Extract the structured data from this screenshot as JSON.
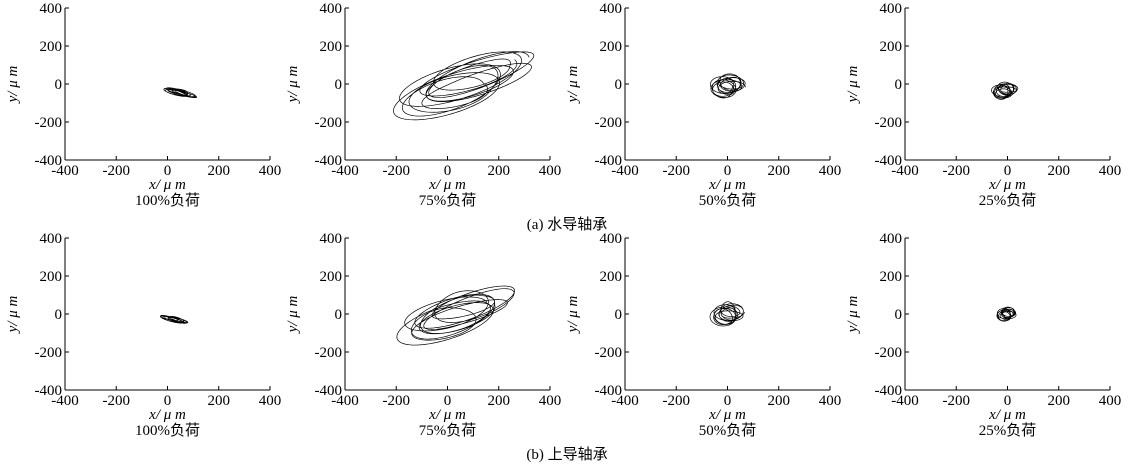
{
  "chart_data": [
    {
      "type": "line",
      "row": 0,
      "col": 0,
      "caption": "100%负荷",
      "xlabel": "x/ μ m",
      "ylabel": "y/ μ m",
      "xlim": [
        -400,
        400
      ],
      "ylim": [
        -400,
        400
      ],
      "xticks": [
        "-400",
        "-200",
        "0",
        "200",
        "400"
      ],
      "yticks": [
        "400",
        "200",
        "0",
        "-200",
        "-400"
      ],
      "orbit": {
        "cx": 45,
        "cy": -45,
        "rx": 55,
        "ry": 14,
        "angle_deg": -20,
        "loops": 8
      }
    },
    {
      "type": "line",
      "row": 0,
      "col": 1,
      "caption": "75%负荷",
      "xlabel": "x/ μ m",
      "ylabel": "y/ μ m",
      "xlim": [
        -400,
        400
      ],
      "ylim": [
        -400,
        400
      ],
      "xticks": [
        "-400",
        "-200",
        "0",
        "200",
        "400"
      ],
      "yticks": [
        "400",
        "200",
        "0",
        "-200",
        "-400"
      ],
      "orbit": {
        "cx": 60,
        "cy": 0,
        "rx": 240,
        "ry": 95,
        "angle_deg": 25,
        "loops": 10
      }
    },
    {
      "type": "line",
      "row": 0,
      "col": 2,
      "caption": "50%负荷",
      "xlabel": "x/ μ m",
      "ylabel": "y/ μ m",
      "xlim": [
        -400,
        400
      ],
      "ylim": [
        -400,
        400
      ],
      "xticks": [
        "-400",
        "-200",
        "0",
        "200",
        "400"
      ],
      "yticks": [
        "400",
        "200",
        "0",
        "-200",
        "-400"
      ],
      "orbit": {
        "cx": 0,
        "cy": -10,
        "rx": 55,
        "ry": 50,
        "angle_deg": 0,
        "loops": 10
      }
    },
    {
      "type": "line",
      "row": 0,
      "col": 3,
      "caption": "25%负荷",
      "xlabel": "x/ μ m",
      "ylabel": "y/ μ m",
      "xlim": [
        -400,
        400
      ],
      "ylim": [
        -400,
        400
      ],
      "xticks": [
        "-400",
        "-200",
        "0",
        "200",
        "400"
      ],
      "yticks": [
        "400",
        "200",
        "0",
        "-200",
        "-400"
      ],
      "orbit": {
        "cx": -10,
        "cy": -35,
        "rx": 40,
        "ry": 35,
        "angle_deg": 0,
        "loops": 10
      }
    },
    {
      "type": "line",
      "row": 1,
      "col": 0,
      "caption": "100%负荷",
      "xlabel": "x/ μ m",
      "ylabel": "y/ μ m",
      "xlim": [
        -400,
        400
      ],
      "ylim": [
        -400,
        400
      ],
      "xticks": [
        "-400",
        "-200",
        "0",
        "200",
        "400"
      ],
      "yticks": [
        "400",
        "200",
        "0",
        "-200",
        "-400"
      ],
      "orbit": {
        "cx": 30,
        "cy": -30,
        "rx": 45,
        "ry": 11,
        "angle_deg": -20,
        "loops": 8
      }
    },
    {
      "type": "line",
      "row": 1,
      "col": 1,
      "caption": "75%负荷",
      "xlabel": "x/ μ m",
      "ylabel": "y/ μ m",
      "xlim": [
        -400,
        400
      ],
      "ylim": [
        -400,
        400
      ],
      "xticks": [
        "-400",
        "-200",
        "0",
        "200",
        "400"
      ],
      "yticks": [
        "400",
        "200",
        "0",
        "-200",
        "-400"
      ],
      "orbit": {
        "cx": 40,
        "cy": 0,
        "rx": 200,
        "ry": 80,
        "angle_deg": 25,
        "loops": 10
      }
    },
    {
      "type": "line",
      "row": 1,
      "col": 2,
      "caption": "50%负荷",
      "xlabel": "x/ μ m",
      "ylabel": "y/ μ m",
      "xlim": [
        -400,
        400
      ],
      "ylim": [
        -400,
        400
      ],
      "xticks": [
        "-400",
        "-200",
        "0",
        "200",
        "400"
      ],
      "yticks": [
        "400",
        "200",
        "0",
        "-200",
        "-400"
      ],
      "orbit": {
        "cx": 0,
        "cy": 0,
        "rx": 52,
        "ry": 48,
        "angle_deg": 0,
        "loops": 10
      }
    },
    {
      "type": "line",
      "row": 1,
      "col": 3,
      "caption": "25%负荷",
      "xlabel": "x/ μ m",
      "ylabel": "y/ μ m",
      "xlim": [
        -400,
        400
      ],
      "ylim": [
        -400,
        400
      ],
      "xticks": [
        "-400",
        "-200",
        "0",
        "200",
        "400"
      ],
      "yticks": [
        "400",
        "200",
        "0",
        "-200",
        "-400"
      ],
      "orbit": {
        "cx": -5,
        "cy": 0,
        "rx": 30,
        "ry": 30,
        "angle_deg": 0,
        "loops": 10
      }
    }
  ],
  "row_captions": [
    "(a) 水导轴承",
    "(b) 上导轴承"
  ]
}
